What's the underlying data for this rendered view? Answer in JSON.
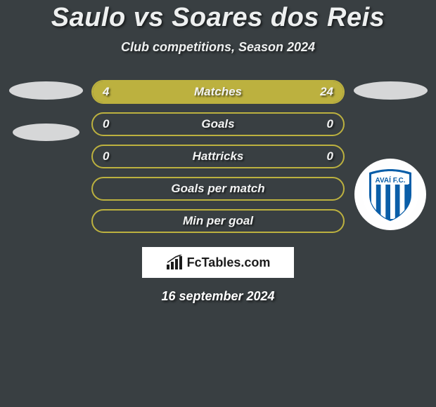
{
  "title": "Saulo vs Soares dos Reis",
  "subtitle": "Club competitions, Season 2024",
  "date": "16 september 2024",
  "brand": "FcTables.com",
  "colors": {
    "bar_border": "#bcb13f",
    "bar_fill_left": "#bcb13f",
    "bar_fill_right": "#bcb13f",
    "background": "#393f42"
  },
  "stats": [
    {
      "label": "Matches",
      "left_val": "4",
      "right_val": "24",
      "left_pct": 14,
      "right_pct": 86
    },
    {
      "label": "Goals",
      "left_val": "0",
      "right_val": "0",
      "left_pct": 0,
      "right_pct": 0
    },
    {
      "label": "Hattricks",
      "left_val": "0",
      "right_val": "0",
      "left_pct": 0,
      "right_pct": 0
    },
    {
      "label": "Goals per match",
      "left_val": "",
      "right_val": "",
      "left_pct": 0,
      "right_pct": 0
    },
    {
      "label": "Min per goal",
      "left_val": "",
      "right_val": "",
      "left_pct": 0,
      "right_pct": 0
    }
  ],
  "club_badge": {
    "name": "AVAÍ F.C.",
    "primary_color": "#0a5ea8",
    "stripe_color": "#ffffff"
  }
}
